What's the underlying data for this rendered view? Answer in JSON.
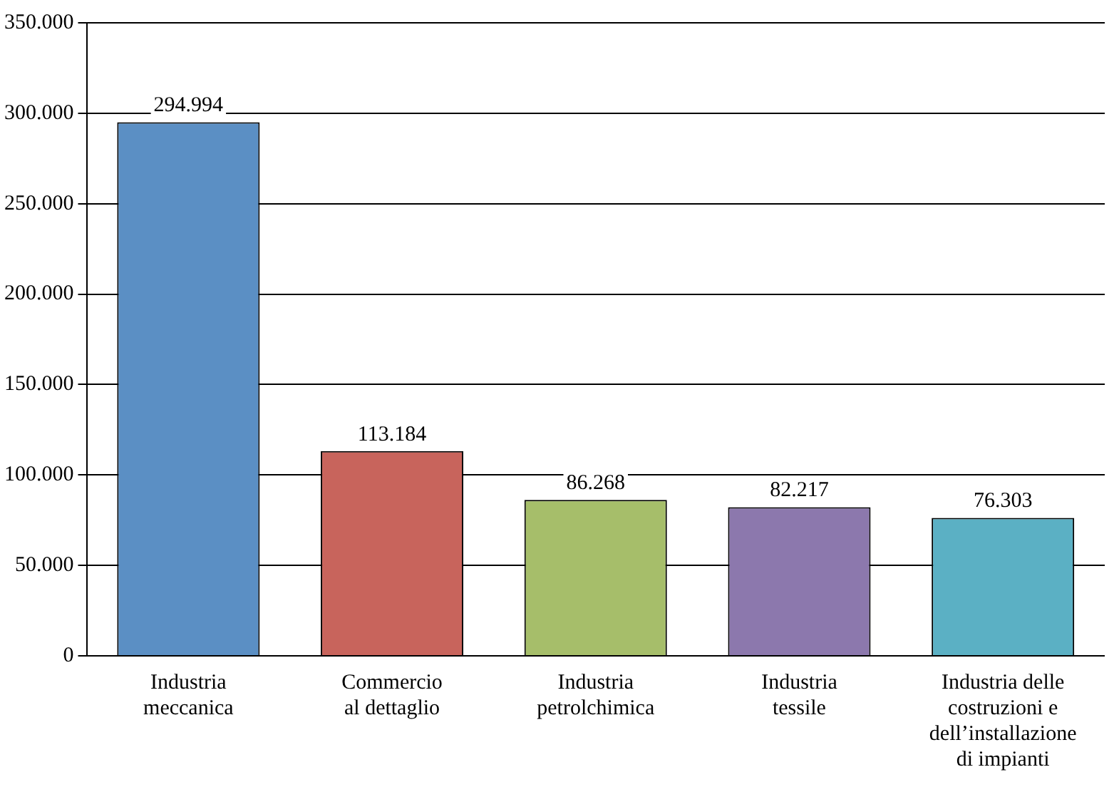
{
  "chart_data": {
    "type": "bar",
    "categories": [
      "Industria meccanica",
      "Commercio al dettaglio",
      "Industria petrolchimica",
      "Industria tessile",
      "Industria delle costruzioni e dell’installazione di impianti"
    ],
    "values": [
      294994,
      113184,
      86268,
      82217,
      76303
    ],
    "value_labels": [
      "294.994",
      "113.184",
      "86.268",
      "82.217",
      "76.303"
    ],
    "colors": [
      "#5b8fc4",
      "#c8645c",
      "#a6be6a",
      "#8c78ad",
      "#5bb0c4"
    ],
    "ylim": [
      0,
      350000
    ],
    "yticks": [
      {
        "value": 0,
        "label": "0"
      },
      {
        "value": 50000,
        "label": "50.000"
      },
      {
        "value": 100000,
        "label": "100.000"
      },
      {
        "value": 150000,
        "label": "150.000"
      },
      {
        "value": 200000,
        "label": "200.000"
      },
      {
        "value": 250000,
        "label": "250.000"
      },
      {
        "value": 300000,
        "label": "300.000"
      },
      {
        "value": 350000,
        "label": "350.000"
      }
    ],
    "grid": "y"
  }
}
